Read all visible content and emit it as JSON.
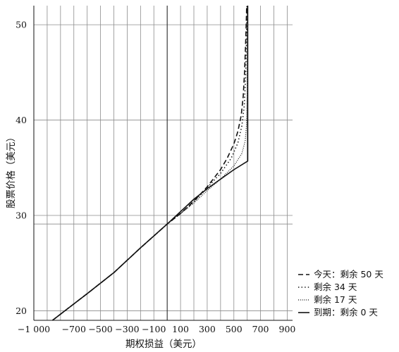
{
  "chart_data": {
    "type": "line",
    "title": "",
    "xlabel": "期权损益（美元）",
    "ylabel": "股票价格（美元）",
    "xlim": [
      -1000,
      940
    ],
    "ylim": [
      19,
      52
    ],
    "x_ticks": [
      -1000,
      -900,
      -800,
      -700,
      -600,
      -500,
      -400,
      -300,
      -200,
      -100,
      0,
      100,
      200,
      300,
      400,
      500,
      600,
      700,
      800,
      900
    ],
    "x_tick_labels": [
      "−1 000",
      "",
      "",
      "−700",
      "",
      "−500",
      "",
      "−300",
      "",
      "−100",
      "",
      "100",
      "",
      "300",
      "",
      "500",
      "",
      "700",
      "",
      "900"
    ],
    "y_ticks": [
      20,
      30,
      40,
      50
    ],
    "y_tick_labels": [
      "20",
      "30",
      "40",
      "50"
    ],
    "extra_horizontal_line": 29.1,
    "grid": true,
    "legend_position": "bottom-right",
    "series": [
      {
        "name": "今天：剩余 50 天",
        "style": "dashed",
        "points": [
          [
            -860,
            19
          ],
          [
            -600,
            21.8
          ],
          [
            -400,
            24.0
          ],
          [
            -200,
            26.6
          ],
          [
            0,
            29.1
          ],
          [
            100,
            30.2
          ],
          [
            200,
            31.5
          ],
          [
            300,
            33.0
          ],
          [
            400,
            34.8
          ],
          [
            450,
            36.0
          ],
          [
            500,
            37.5
          ],
          [
            530,
            38.8
          ],
          [
            555,
            40.5
          ],
          [
            570,
            42.5
          ],
          [
            580,
            45
          ],
          [
            588,
            48
          ],
          [
            593,
            50.5
          ],
          [
            596,
            52
          ]
        ]
      },
      {
        "name": "剩余 34 天",
        "style": "dotted-sparse",
        "points": [
          [
            -860,
            19
          ],
          [
            -600,
            21.8
          ],
          [
            -400,
            24.0
          ],
          [
            -200,
            26.6
          ],
          [
            0,
            29.1
          ],
          [
            100,
            30.2
          ],
          [
            200,
            31.4
          ],
          [
            300,
            32.9
          ],
          [
            400,
            34.4
          ],
          [
            480,
            36.0
          ],
          [
            530,
            37.6
          ],
          [
            560,
            39.4
          ],
          [
            578,
            41.5
          ],
          [
            588,
            44.5
          ],
          [
            594,
            48
          ],
          [
            598,
            52
          ]
        ]
      },
      {
        "name": "剩余 17 天",
        "style": "dotted-dense",
        "points": [
          [
            -860,
            19
          ],
          [
            -600,
            21.8
          ],
          [
            -400,
            24.0
          ],
          [
            -200,
            26.6
          ],
          [
            0,
            29.1
          ],
          [
            100,
            30.2
          ],
          [
            200,
            31.3
          ],
          [
            300,
            32.6
          ],
          [
            400,
            33.8
          ],
          [
            500,
            35.2
          ],
          [
            560,
            36.5
          ],
          [
            585,
            37.8
          ],
          [
            595,
            39.5
          ],
          [
            600,
            43
          ],
          [
            602,
            52
          ]
        ]
      },
      {
        "name": "到期：剩余 0 天",
        "style": "solid",
        "points": [
          [
            -860,
            19
          ],
          [
            -600,
            21.8
          ],
          [
            -400,
            24.0
          ],
          [
            -200,
            26.6
          ],
          [
            0,
            29.1
          ],
          [
            100,
            30.4
          ],
          [
            200,
            31.7
          ],
          [
            300,
            32.8
          ],
          [
            400,
            33.8
          ],
          [
            500,
            34.8
          ],
          [
            604,
            35.7
          ],
          [
            604,
            52
          ]
        ]
      }
    ]
  }
}
